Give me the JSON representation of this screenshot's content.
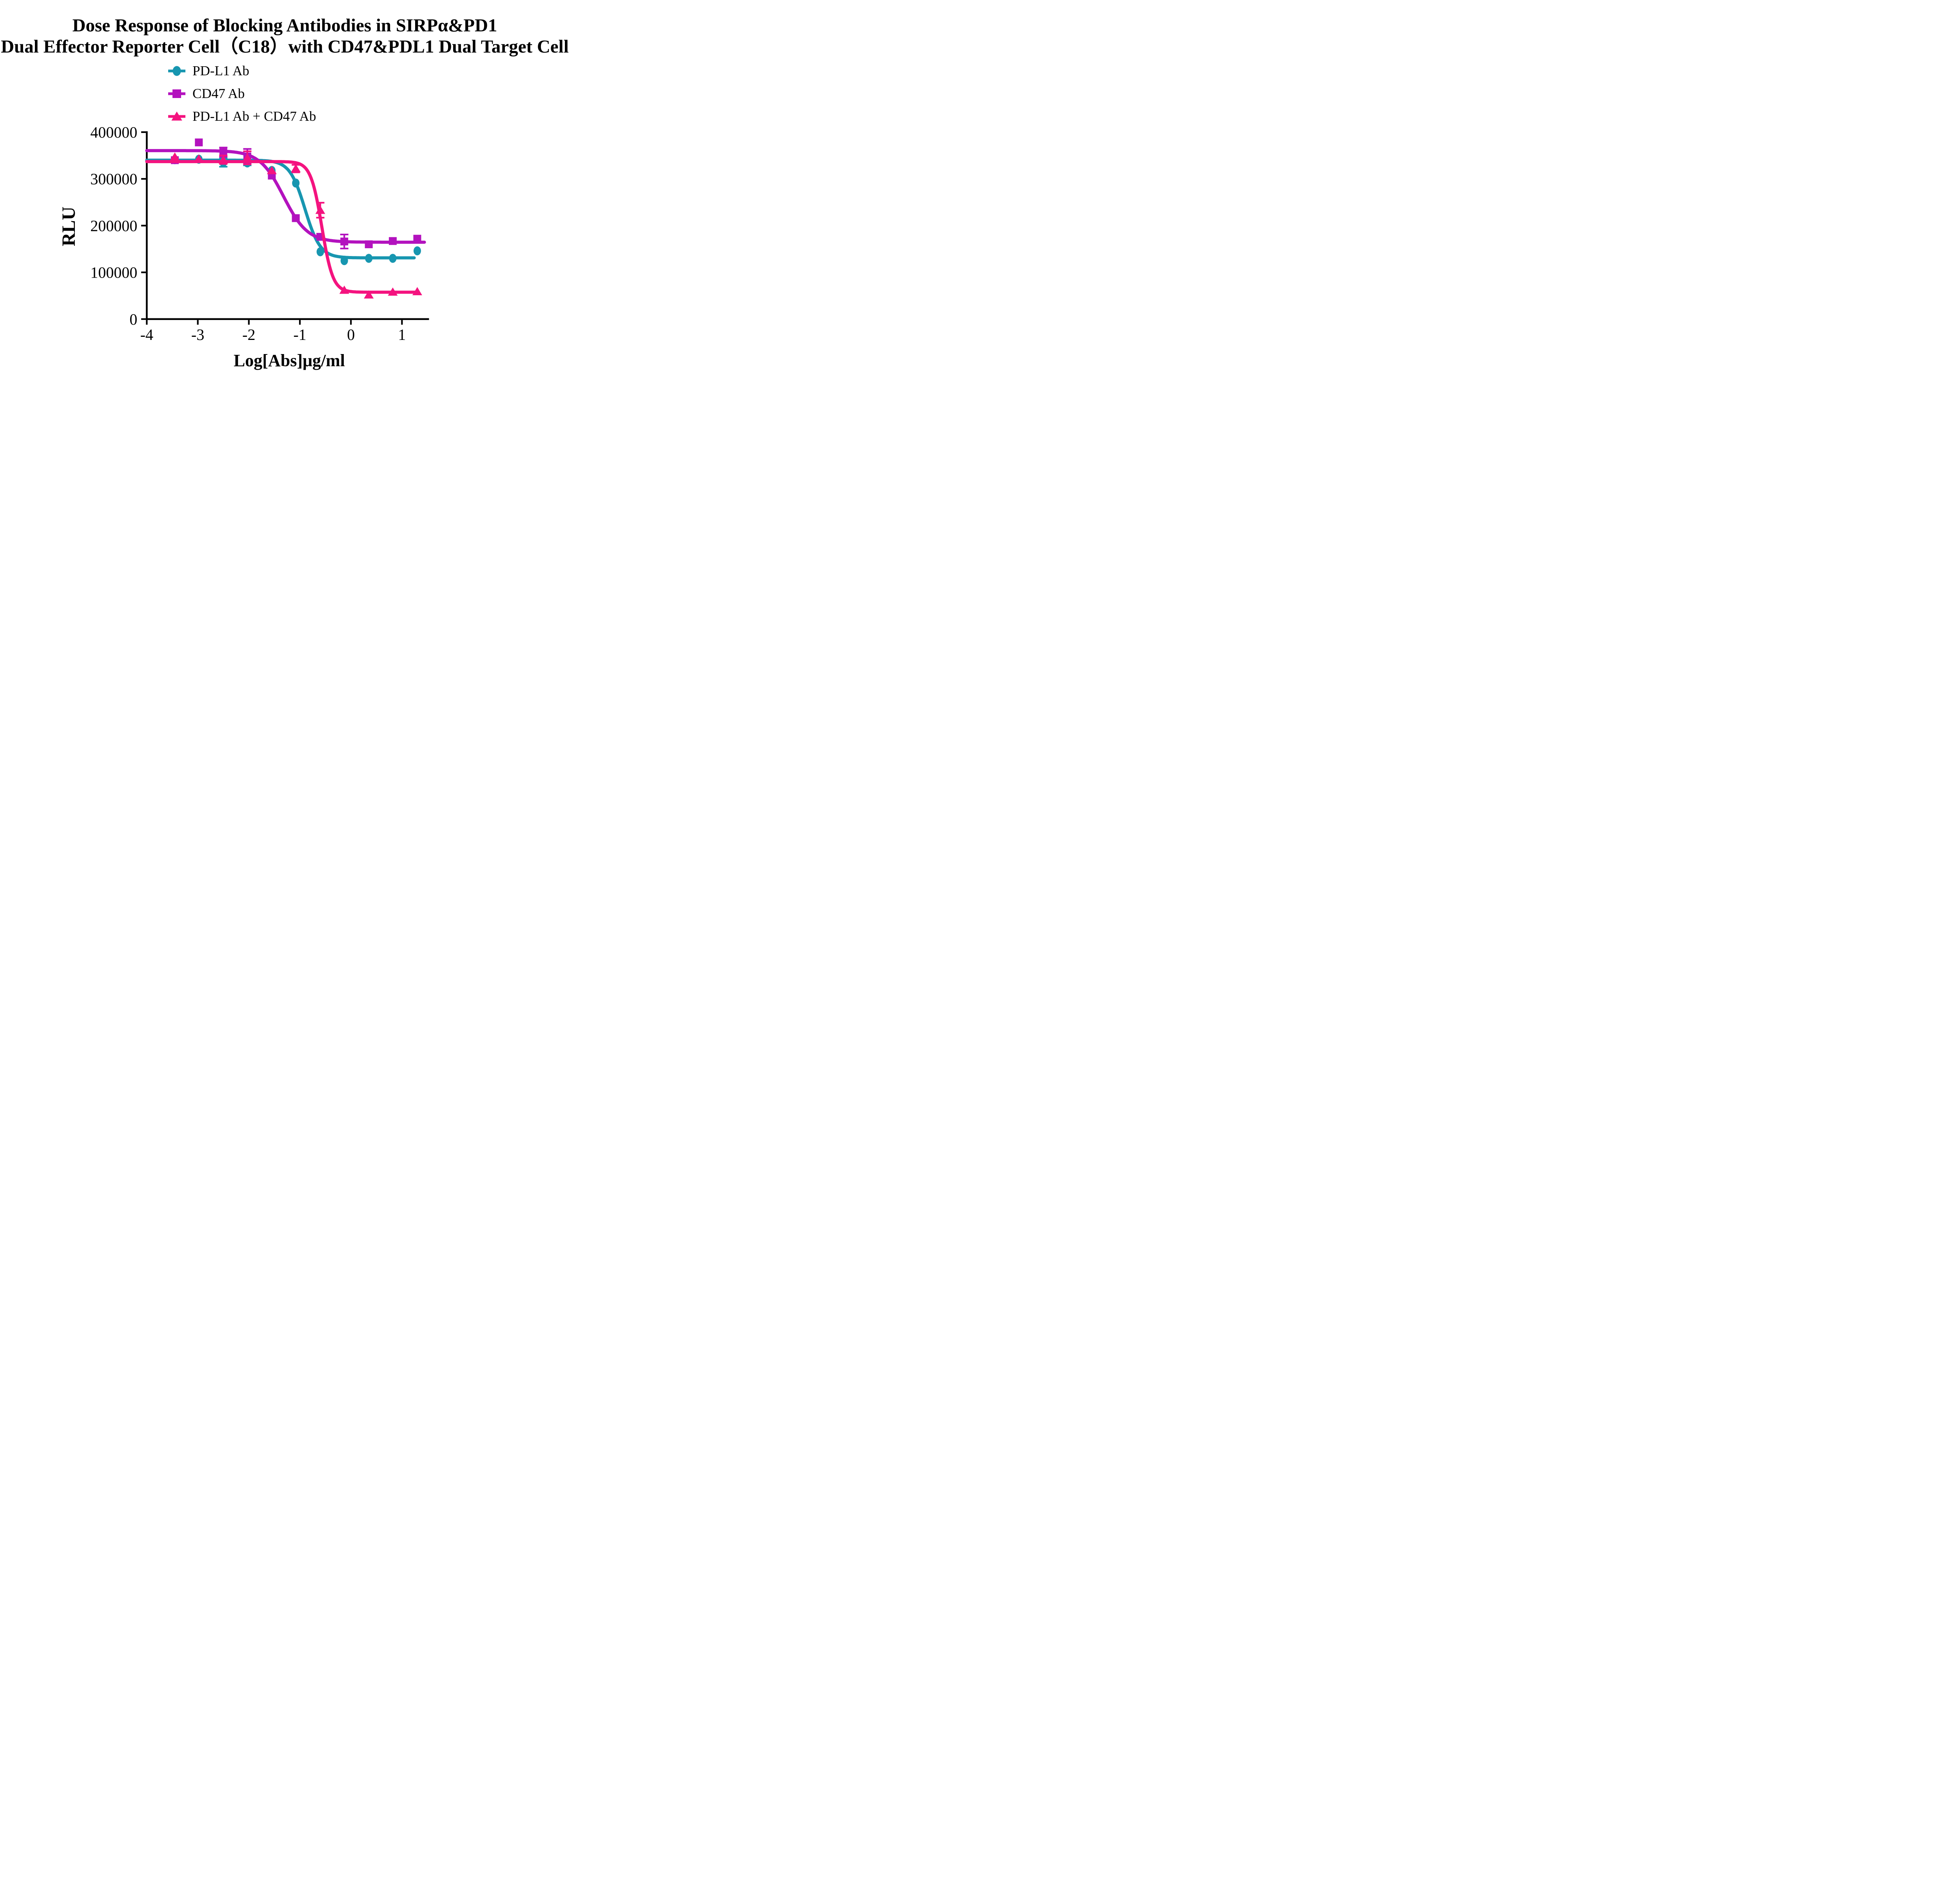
{
  "title": {
    "line1": "Dose Response of Blocking Antibodies in SIRPα&PD1",
    "line2": "Dual Effector Reporter Cell（C18）with CD47&PDL1 Dual Target Cell"
  },
  "axes": {
    "xlabel": "Log[Abs]μg/ml",
    "ylabel": "RLU",
    "x_tick_labels": [
      "-4",
      "-3",
      "-2",
      "-1",
      "0",
      "1"
    ],
    "y_tick_labels": [
      "0",
      "100000",
      "200000",
      "300000",
      "400000"
    ]
  },
  "chart_data": {
    "type": "line",
    "title": "Dose Response of Blocking Antibodies in SIRPα&PD1 Dual Effector Reporter Cell（C18）with CD47&PDL1 Dual Target Cell",
    "xlabel": "Log[Abs]μg/ml",
    "ylabel": "RLU",
    "xlim": [
      -4,
      1.55
    ],
    "ylim": [
      0,
      400000
    ],
    "x_ticks": [
      -4,
      -3,
      -2,
      -1,
      0,
      1
    ],
    "y_ticks": [
      0,
      100000,
      200000,
      300000,
      400000
    ],
    "grid": false,
    "legend_position": "top-left",
    "x": [
      -3.45,
      -2.98,
      -2.5,
      -2.03,
      -1.55,
      -1.08,
      -0.6,
      -0.13,
      0.35,
      0.82,
      1.3
    ],
    "series": [
      {
        "name": "PD-L1 Ab",
        "color": "#1796B0",
        "marker": "circle",
        "y": [
          341000,
          342000,
          335000,
          334000,
          318000,
          291000,
          144000,
          125000,
          130000,
          130000,
          146000
        ],
        "err": [
          0,
          0,
          9000,
          5000,
          0,
          0,
          0,
          0,
          0,
          0,
          0
        ],
        "fit": {
          "top": 340000,
          "bottom": 131000,
          "logec50": -0.9,
          "hill": 2.9,
          "x_start": -4,
          "x_end": 1.25
        }
      },
      {
        "name": "CD47 Ab",
        "color": "#B312BE",
        "marker": "square",
        "y": [
          340000,
          378000,
          357000,
          348000,
          307000,
          216000,
          176000,
          166000,
          160000,
          167000,
          172000
        ],
        "err": [
          0,
          0,
          10000,
          16000,
          0,
          0,
          0,
          15000,
          0,
          0,
          0
        ],
        "fit": {
          "top": 360500,
          "bottom": 164500,
          "logec50": -1.32,
          "hill": 1.86,
          "x_start": -4,
          "x_end": 1.44
        }
      },
      {
        "name": "PD-L1 Ab + CD47 Ab",
        "color": "#F4137F",
        "marker": "triangle",
        "y": [
          347000,
          343000,
          341000,
          345000,
          318000,
          322000,
          233000,
          62000,
          52000,
          58000,
          59000
        ],
        "err": [
          0,
          0,
          9000,
          14000,
          0,
          8000,
          16000,
          0,
          0,
          0,
          0
        ],
        "fit": {
          "top": 337000,
          "bottom": 57500,
          "logec50": -0.57,
          "hill": 4.0,
          "x_start": -4,
          "x_end": 1.31
        }
      }
    ]
  }
}
